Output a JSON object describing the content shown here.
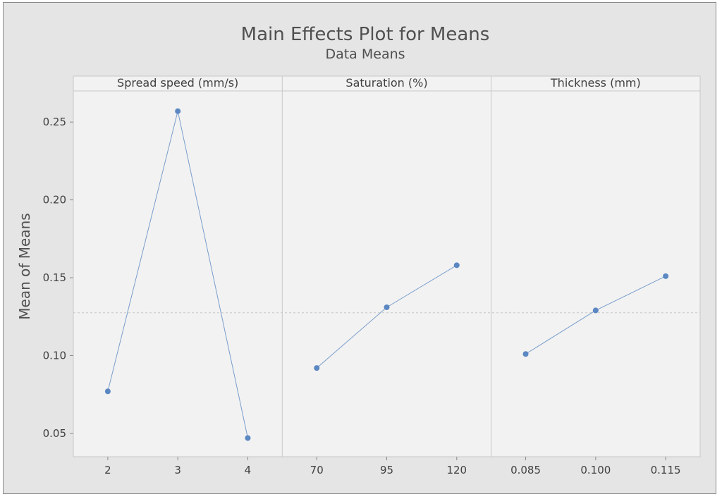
{
  "chart_data": {
    "type": "line",
    "title": "Main Effects Plot for Means",
    "subtitle": "Data Means",
    "ylabel": "Mean of Means",
    "ylim": [
      0.035,
      0.27
    ],
    "yticks": [
      "0.05",
      "0.10",
      "0.15",
      "0.20",
      "0.25"
    ],
    "ytick_values": [
      0.05,
      0.1,
      0.15,
      0.2,
      0.25
    ],
    "reference_line": 0.1275,
    "grid": false,
    "colors": {
      "series": "#5b87c2",
      "reference": "#c8c8c8",
      "panel_bg": "#f2f2f2",
      "outer_bg": "#e5e5e5"
    },
    "panels": [
      {
        "name": "Spread speed (mm/s)",
        "categories": [
          "2",
          "3",
          "4"
        ],
        "values": [
          0.077,
          0.257,
          0.047
        ]
      },
      {
        "name": "Saturation (%)",
        "categories": [
          "70",
          "95",
          "120"
        ],
        "values": [
          0.092,
          0.131,
          0.158
        ]
      },
      {
        "name": "Thickness (mm)",
        "categories": [
          "0.085",
          "0.100",
          "0.115"
        ],
        "values": [
          0.101,
          0.129,
          0.151
        ]
      }
    ]
  }
}
